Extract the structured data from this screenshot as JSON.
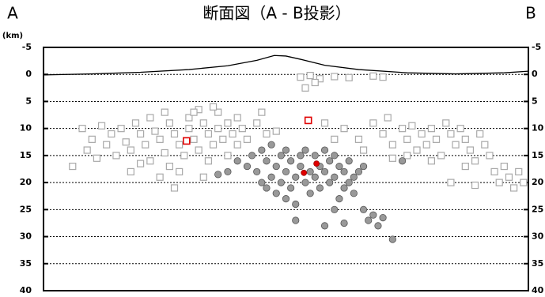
{
  "chart_data": {
    "type": "scatter",
    "title": "断面図（A - B投影）",
    "left_label": "A",
    "right_label": "B",
    "y_unit": "(km)",
    "xlim": [
      0,
      100
    ],
    "ylim": [
      -5,
      40
    ],
    "y_inverted": true,
    "yticks": [
      -5,
      0,
      5,
      10,
      15,
      20,
      25,
      30,
      35,
      40
    ],
    "grid": true,
    "profile": {
      "color": "#000000",
      "x": [
        0,
        10,
        20,
        30,
        38,
        44,
        47.6,
        50,
        53,
        58,
        65,
        75,
        85,
        95,
        100
      ],
      "y": [
        0.1,
        -0.1,
        -0.4,
        -0.9,
        -1.6,
        -2.6,
        -3.5,
        -3.4,
        -2.8,
        -1.7,
        -0.9,
        -0.3,
        -0.1,
        -0.3,
        -0.6
      ]
    },
    "series": [
      {
        "marker": "square",
        "color": "#a9a9a9",
        "x": [
          8,
          10,
          12,
          13,
          14,
          15,
          16,
          17,
          18,
          19,
          20,
          21,
          22,
          22,
          23,
          24,
          25,
          26,
          26,
          27,
          28,
          29,
          30,
          30,
          31,
          32,
          32,
          33,
          34,
          34,
          35,
          36,
          36,
          37,
          38,
          38,
          39,
          40,
          40,
          18,
          20,
          24,
          28,
          11,
          6,
          9,
          27,
          33,
          41,
          42,
          35,
          31,
          25,
          44,
          46,
          48,
          45,
          53,
          55,
          57,
          60,
          63,
          68,
          70,
          54,
          56,
          68,
          70,
          71,
          72,
          74,
          75,
          76,
          77,
          78,
          79,
          80,
          81,
          82,
          83,
          84,
          85,
          86,
          87,
          88,
          89,
          90,
          91,
          92,
          93,
          94,
          95,
          96,
          97,
          98,
          99,
          87,
          84,
          80,
          89,
          75,
          72,
          65,
          66,
          62,
          60,
          58
        ],
        "y": [
          10,
          12,
          9.5,
          13,
          11,
          15,
          10,
          12.5,
          14,
          9,
          11,
          13,
          16,
          8,
          10.5,
          12,
          14.5,
          9,
          17,
          11,
          13,
          15,
          8,
          10,
          12,
          14,
          6.5,
          9,
          11,
          16,
          13,
          7,
          10,
          12,
          9,
          15,
          11,
          8,
          13,
          18,
          16.5,
          19,
          18,
          15.5,
          17,
          14,
          21,
          19,
          10,
          12,
          6,
          7,
          7,
          9,
          11,
          10.5,
          7,
          0.5,
          0.2,
          0.8,
          0.4,
          0.6,
          0.3,
          0.5,
          2.5,
          1.5,
          9,
          11,
          8,
          13,
          10,
          12,
          9.5,
          14,
          11,
          13,
          10,
          12,
          15,
          9,
          11,
          13,
          10,
          12,
          14,
          16,
          11,
          13,
          15,
          18,
          20,
          17,
          19,
          21,
          18,
          20,
          17,
          20,
          16,
          20.5,
          15,
          15.5,
          12,
          14,
          10,
          12,
          9
        ]
      },
      {
        "marker": "circle",
        "color": "#999999",
        "x": [
          42,
          43,
          44,
          45,
          45,
          46,
          47,
          47,
          48,
          48,
          49,
          49,
          50,
          50,
          51,
          51,
          52,
          52,
          53,
          53,
          54,
          54,
          55,
          55,
          56,
          56,
          57,
          57,
          58,
          58,
          59,
          59,
          60,
          60,
          61,
          61,
          62,
          62,
          63,
          63,
          64,
          64,
          65,
          66,
          66,
          67,
          68,
          69,
          70,
          72,
          60,
          62,
          58,
          52,
          50,
          46,
          40,
          38,
          36,
          74
        ],
        "y": [
          17,
          15,
          18,
          14,
          20,
          16,
          19,
          13,
          17,
          22,
          15,
          20,
          18,
          14,
          16,
          21,
          19,
          24,
          15,
          17,
          20,
          14,
          18,
          22,
          15,
          19,
          17,
          21,
          14,
          18,
          16,
          20,
          15,
          19,
          17,
          23,
          18,
          21,
          16,
          20,
          19,
          22,
          18,
          17,
          25,
          27,
          26,
          28,
          26.5,
          30.5,
          25,
          27.5,
          28,
          27,
          23,
          21,
          16,
          18,
          18.5,
          16
        ]
      },
      {
        "marker": "square",
        "color": "#e00000",
        "x": [
          29.5,
          54.6
        ],
        "y": [
          12.3,
          8.5
        ]
      },
      {
        "marker": "circle",
        "color": "#e00000",
        "x": [
          53.7,
          56.3
        ],
        "y": [
          18.2,
          16.5
        ]
      }
    ]
  }
}
